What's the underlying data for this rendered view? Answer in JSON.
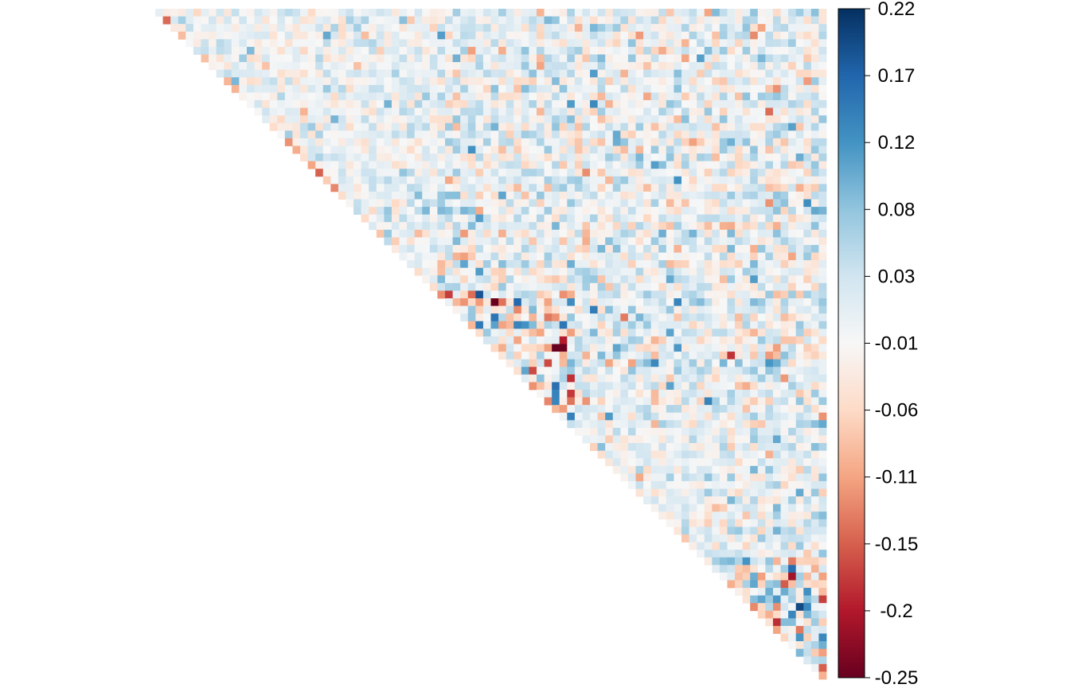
{
  "chart_data": {
    "type": "heatmap",
    "shape": "upper-triangle",
    "description_of_values": "correlation matrix, upper triangle",
    "n": 88,
    "colorbar": {
      "min": -0.25,
      "max": 0.22,
      "tick_labels": [
        "0.22",
        "0.17",
        "0.12",
        "0.08",
        "0.03",
        "-0.01",
        "-0.06",
        "-0.11",
        "-0.15",
        "-0.2",
        "-0.25"
      ],
      "tick_values": [
        0.22,
        0.17,
        0.12,
        0.08,
        0.03,
        -0.01,
        -0.06,
        -0.11,
        -0.15,
        -0.2,
        -0.25
      ],
      "colormap": [
        "#67001f",
        "#b2182b",
        "#d6604d",
        "#f4a582",
        "#fddbc7",
        "#f7f7f7",
        "#d1e5f0",
        "#92c5de",
        "#4393c3",
        "#2166ac",
        "#053061"
      ]
    },
    "blocks": [
      {
        "start": 0,
        "end": 37,
        "strength": 0.06
      },
      {
        "start": 37,
        "end": 55,
        "strength": 0.16
      },
      {
        "start": 55,
        "end": 72,
        "strength": 0.06
      },
      {
        "start": 72,
        "end": 88,
        "strength": 0.17
      }
    ],
    "legend_position": "right",
    "grid": false
  }
}
